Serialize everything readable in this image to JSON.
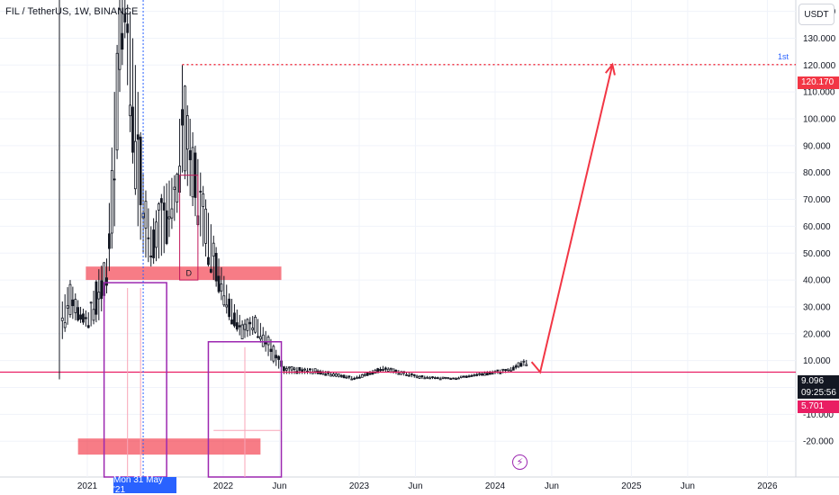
{
  "header": {
    "symbol_title": "FIL / TetherUS, 1W, BINANCE",
    "currency": "USDT"
  },
  "price_scale": {
    "ticks": [
      "140.000",
      "130.000",
      "120.000",
      "110.000",
      "100.000",
      "90.000",
      "80.000",
      "70.000",
      "60.000",
      "50.000",
      "40.000",
      "30.000",
      "20.000",
      "10.000",
      "0.000",
      "-10.000",
      "-20.000"
    ],
    "tick_values": [
      140,
      130,
      120,
      110,
      100,
      90,
      80,
      70,
      60,
      50,
      40,
      30,
      20,
      10,
      0,
      -10,
      -20
    ],
    "current_price": "9.096",
    "countdown": "09:25:56",
    "level_low": "5.701",
    "level_target": "120.170",
    "target_label": "1st"
  },
  "time_scale": {
    "ticks": [
      "2021",
      "2022",
      "Jun",
      "2023",
      "Jun",
      "2024",
      "Jun",
      "2025",
      "Jun",
      "2026"
    ],
    "crosshair_date": "Mon 31 May '21"
  },
  "colors": {
    "up_candle": "#131722",
    "zone_fill": "#f23645",
    "measure_box": "#9c27b0",
    "target_line": "#f23645",
    "arrow": "#f23645",
    "current_price_bg": "#131722",
    "low_level_bg": "#e91e63",
    "target_bg": "#f23645",
    "crosshair_badge": "#2962ff"
  },
  "annotations": {
    "box_label": "D",
    "icon": "lightning-icon"
  },
  "chart_data": {
    "type": "candlestick",
    "title": "FIL / TetherUS, 1W, BINANCE",
    "ylim": [
      -25,
      145
    ],
    "series": [
      {
        "name": "FIL/USDT weekly",
        "points": [
          [
            "2020-10-26",
            18,
            32
          ],
          [
            "2020-11-16",
            26,
            40
          ],
          [
            "2020-12-14",
            24,
            30
          ],
          [
            "2021-01-04",
            22,
            28
          ],
          [
            "2021-02-01",
            25,
            44
          ],
          [
            "2021-02-22",
            35,
            48
          ],
          [
            "2021-03-15",
            60,
            110
          ],
          [
            "2021-03-29",
            110,
            145
          ],
          [
            "2021-04-12",
            130,
            145
          ],
          [
            "2021-04-26",
            95,
            140
          ],
          [
            "2021-05-17",
            60,
            110
          ],
          [
            "2021-05-31",
            50,
            80
          ],
          [
            "2021-06-21",
            45,
            60
          ],
          [
            "2021-07-26",
            50,
            75
          ],
          [
            "2021-08-30",
            65,
            80
          ],
          [
            "2021-09-13",
            80,
            120
          ],
          [
            "2021-09-27",
            75,
            105
          ],
          [
            "2021-10-25",
            60,
            85
          ],
          [
            "2021-11-22",
            45,
            65
          ],
          [
            "2021-12-20",
            35,
            48
          ],
          [
            "2022-01-17",
            25,
            35
          ],
          [
            "2022-02-21",
            18,
            25
          ],
          [
            "2022-03-28",
            20,
            27
          ],
          [
            "2022-05-09",
            10,
            18
          ],
          [
            "2022-06-13",
            5,
            8
          ],
          [
            "2022-09-05",
            5,
            7
          ],
          [
            "2022-12-19",
            2.8,
            4
          ],
          [
            "2023-03-06",
            6,
            8
          ],
          [
            "2023-06-12",
            3.2,
            4.5
          ],
          [
            "2023-09-11",
            3,
            3.6
          ],
          [
            "2023-12-04",
            4.5,
            6
          ],
          [
            "2024-02-05",
            5.5,
            7
          ],
          [
            "2024-03-18",
            8,
            10.5
          ],
          [
            "2024-04-01",
            8,
            10
          ]
        ]
      }
    ],
    "levels": [
      {
        "label": "120.170",
        "value": 120.17,
        "style": "dotted"
      },
      {
        "label": "5.701",
        "value": 5.701,
        "style": "solid"
      }
    ],
    "zones": [
      {
        "from": "2020-12-28",
        "to": "2022-06-06",
        "low": 40,
        "high": 45
      },
      {
        "from": "2020-12-07",
        "to": "2022-04-11",
        "low": -25,
        "high": -19
      }
    ],
    "projection": {
      "from": [
        "2024-05-01",
        5.7
      ],
      "to": [
        "2024-11-11",
        120.17
      ]
    }
  }
}
